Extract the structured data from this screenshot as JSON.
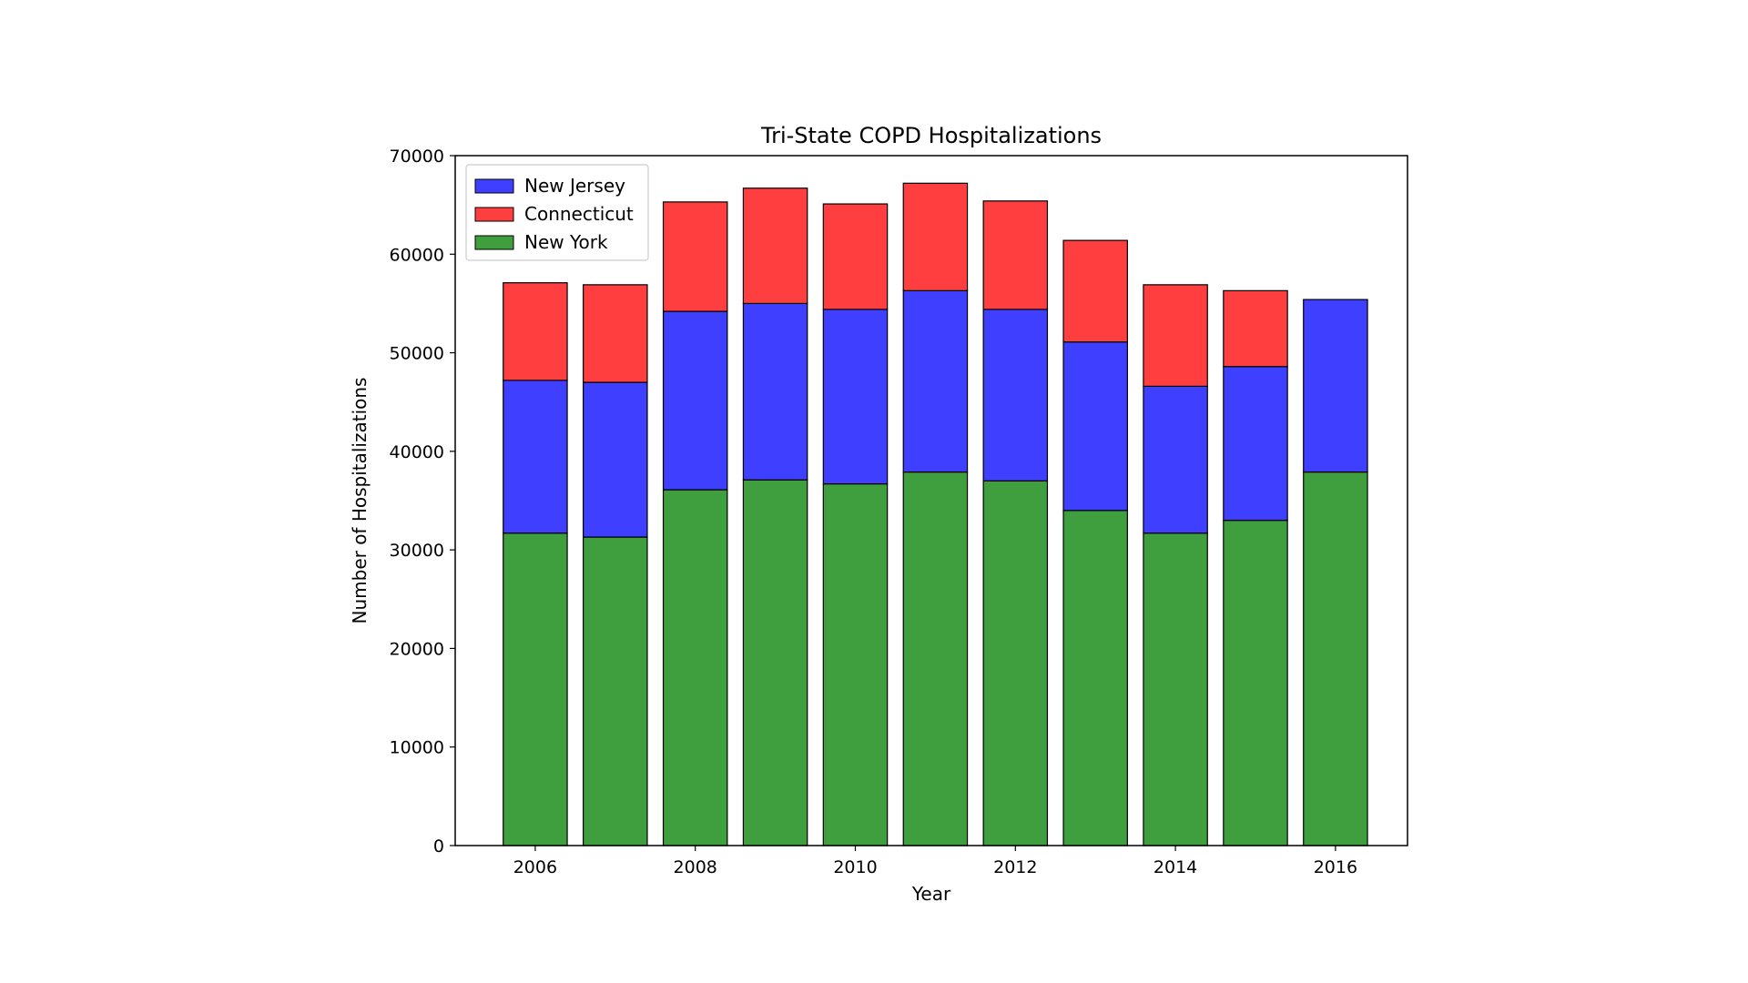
{
  "chart_data": {
    "type": "bar",
    "stacked": true,
    "title": "Tri-State COPD Hospitalizations",
    "xlabel": "Year",
    "ylabel": "Number of Hospitalizations",
    "xlim": [
      2005.0,
      2016.9
    ],
    "ylim": [
      0,
      70000
    ],
    "x_ticks": [
      2006,
      2008,
      2010,
      2012,
      2014,
      2016
    ],
    "y_ticks": [
      0,
      10000,
      20000,
      30000,
      40000,
      50000,
      60000,
      70000
    ],
    "categories": [
      2006,
      2007,
      2008,
      2009,
      2010,
      2011,
      2012,
      2013,
      2014,
      2015,
      2016
    ],
    "series": [
      {
        "name": "New York",
        "color": "#3f9f3f",
        "values": [
          31700,
          31300,
          36100,
          37100,
          36700,
          37900,
          37000,
          34000,
          31700,
          33000,
          37900
        ]
      },
      {
        "name": "New Jersey",
        "color": "#3f3fff",
        "values": [
          15500,
          15700,
          18100,
          17900,
          17700,
          18400,
          17400,
          17100,
          14900,
          15600,
          17500
        ]
      },
      {
        "name": "Connecticut",
        "color": "#ff3f3f",
        "values": [
          9900,
          9900,
          11100,
          11700,
          10700,
          10900,
          11000,
          10300,
          10300,
          7700,
          0
        ]
      }
    ],
    "legend": {
      "position": "top-left",
      "order": [
        "New Jersey",
        "Connecticut",
        "New York"
      ]
    },
    "grid": false
  }
}
